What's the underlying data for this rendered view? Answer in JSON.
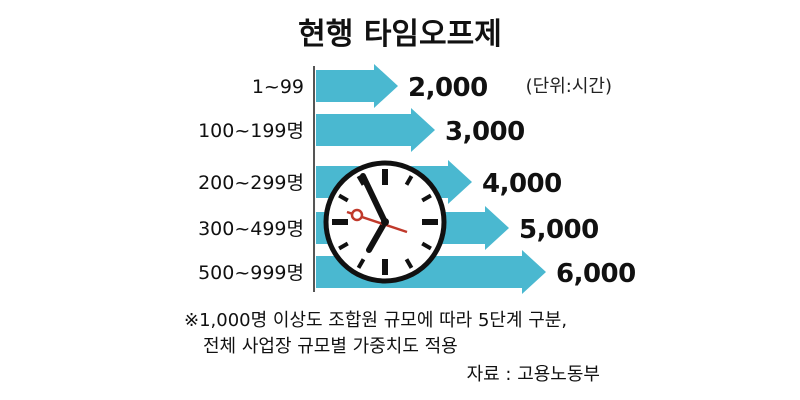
{
  "chart_data": {
    "type": "bar",
    "title": "현행 타임오프제",
    "unit_note": "(단위:시간)",
    "categories": [
      "1~99",
      "100~199명",
      "200~299명",
      "300~499명",
      "500~999명"
    ],
    "values": [
      2000,
      3000,
      4000,
      5000,
      6000
    ],
    "value_labels": [
      "2,000",
      "3,000",
      "4,000",
      "5,000",
      "6,000"
    ],
    "bar_color": "#4ab8d0",
    "footnote_lines": [
      "※1,000명 이상도 조합원 규모에 따라 5단계 구분,",
      "전체 사업장 규모별 가중치도 적용"
    ],
    "source": "자료 : 고용노동부"
  }
}
